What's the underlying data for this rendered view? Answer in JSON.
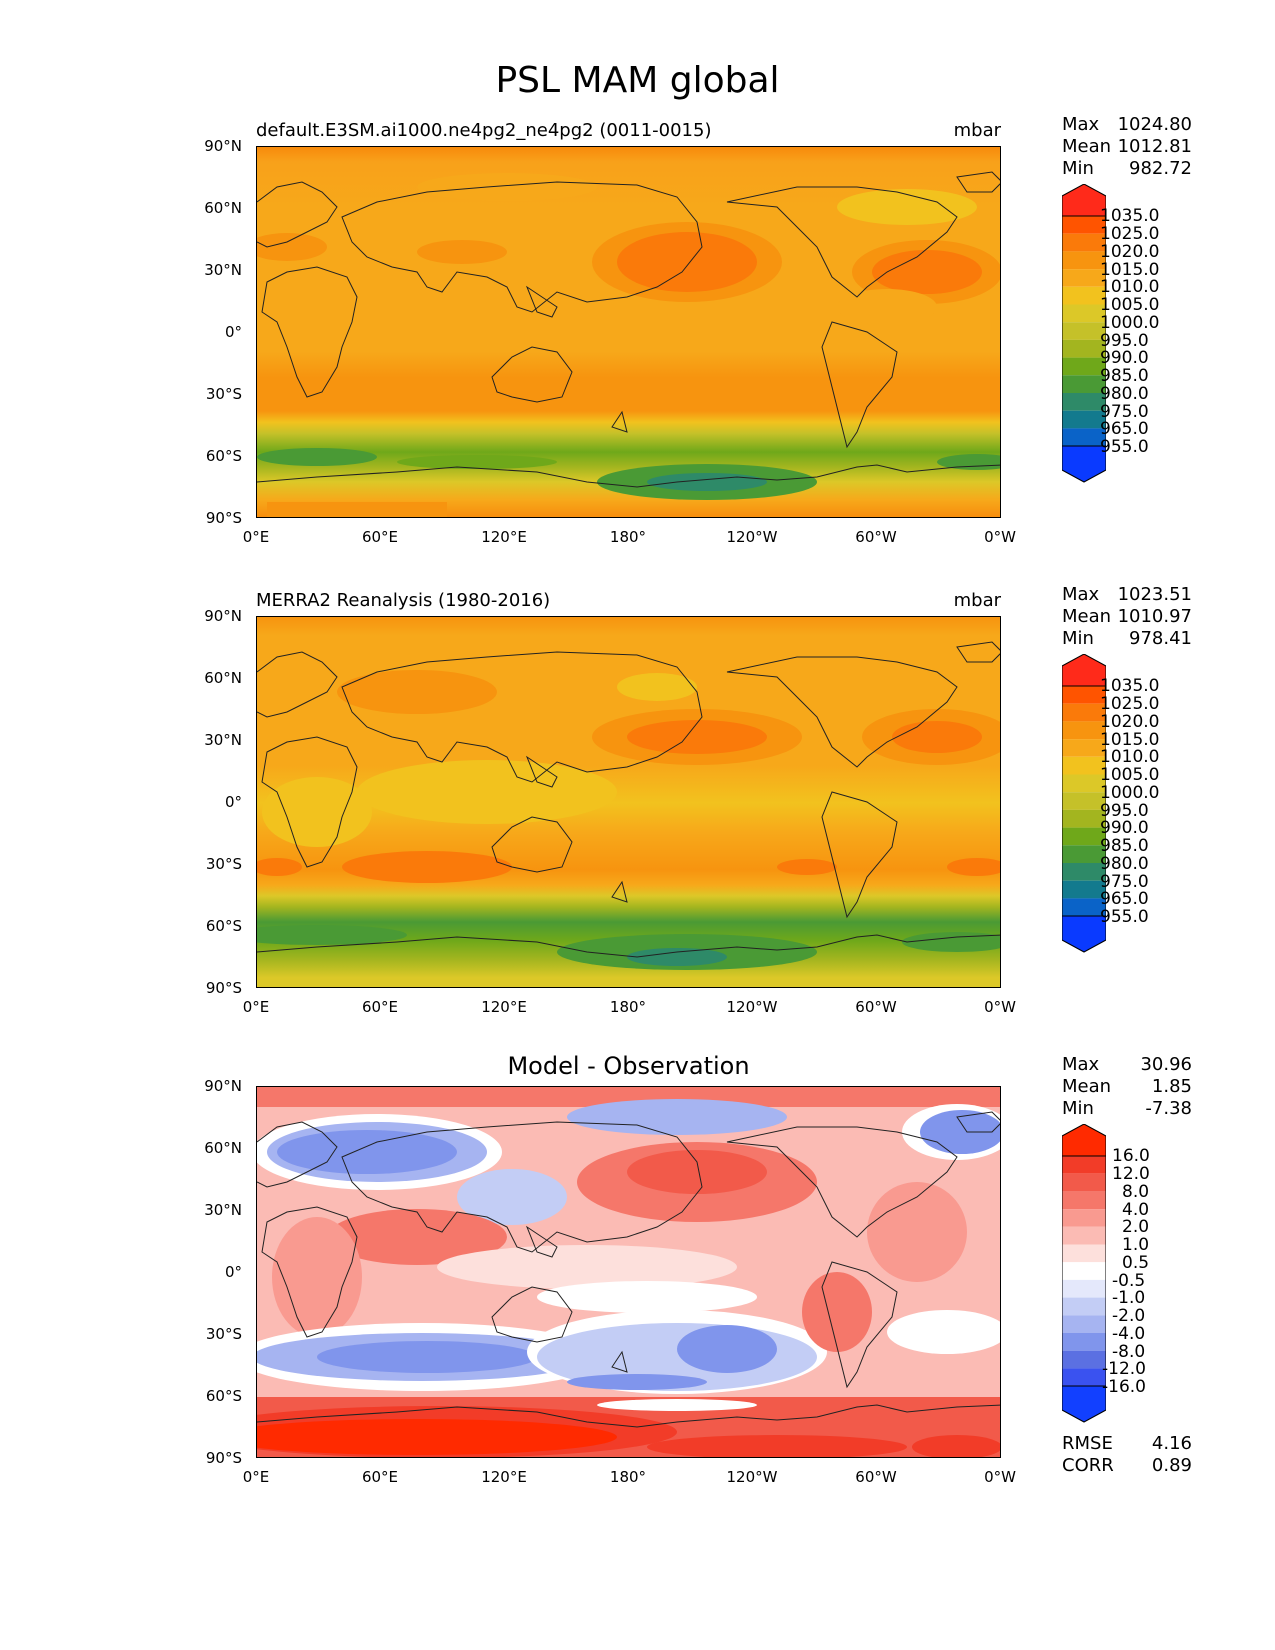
{
  "figure": {
    "title": "PSL MAM global"
  },
  "axes": {
    "lat_labels": [
      "90°N",
      "60°N",
      "30°N",
      "0°",
      "30°S",
      "60°S",
      "90°S"
    ],
    "lon_labels": [
      "0°E",
      "60°E",
      "120°E",
      "180°",
      "120°W",
      "60°W",
      "0°W"
    ]
  },
  "panels": [
    {
      "title_left": "default.E3SM.ai1000.ne4pg2_ne4pg2 (0011-0015)",
      "units": "mbar",
      "stats": [
        {
          "label": "Max",
          "value": "1024.80"
        },
        {
          "label": "Mean",
          "value": "1012.81"
        },
        {
          "label": "Min",
          "value": "982.72"
        }
      ],
      "colorbar_labels": [
        "1035.0",
        "1025.0",
        "1020.0",
        "1015.0",
        "1010.0",
        "1005.0",
        "1000.0",
        "995.0",
        "990.0",
        "985.0",
        "980.0",
        "975.0",
        "965.0",
        "955.0"
      ]
    },
    {
      "title_left": "MERRA2 Reanalysis (1980-2016)",
      "units": "mbar",
      "stats": [
        {
          "label": "Max",
          "value": "1023.51"
        },
        {
          "label": "Mean",
          "value": "1010.97"
        },
        {
          "label": "Min",
          "value": "978.41"
        }
      ],
      "colorbar_labels": [
        "1035.0",
        "1025.0",
        "1020.0",
        "1015.0",
        "1010.0",
        "1005.0",
        "1000.0",
        "995.0",
        "990.0",
        "985.0",
        "980.0",
        "975.0",
        "965.0",
        "955.0"
      ]
    },
    {
      "title_center": "Model - Observation",
      "stats": [
        {
          "label": "Max",
          "value": "30.96"
        },
        {
          "label": "Mean",
          "value": "1.85"
        },
        {
          "label": "Min",
          "value": "-7.38"
        }
      ],
      "colorbar_labels": [
        "16.0",
        "12.0",
        "8.0",
        "4.0",
        "2.0",
        "1.0",
        "0.5",
        "-0.5",
        "-1.0",
        "-2.0",
        "-4.0",
        "-8.0",
        "-12.0",
        "-16.0"
      ],
      "metrics": [
        {
          "label": "RMSE",
          "value": "4.16"
        },
        {
          "label": "CORR",
          "value": "0.89"
        }
      ]
    }
  ],
  "colors": {
    "psl_scale": [
      "#ff2a1a",
      "#ff5400",
      "#fa7a0a",
      "#f7940f",
      "#f7a81a",
      "#f2c21e",
      "#dcc828",
      "#c5c129",
      "#a3b51f",
      "#6fa81a",
      "#4a9a35",
      "#2e8a68",
      "#137a8e",
      "#0a63c8",
      "#0a3aff"
    ],
    "diff_scale": [
      "#ff2a00",
      "#f23c28",
      "#f25a4a",
      "#f5776a",
      "#f99a90",
      "#fbbbb4",
      "#fde0dc",
      "#ffffff",
      "#e4e8fb",
      "#c3cdf5",
      "#a6b4f1",
      "#8095ec",
      "#5b70e2",
      "#3a52f0",
      "#1240ff"
    ]
  }
}
